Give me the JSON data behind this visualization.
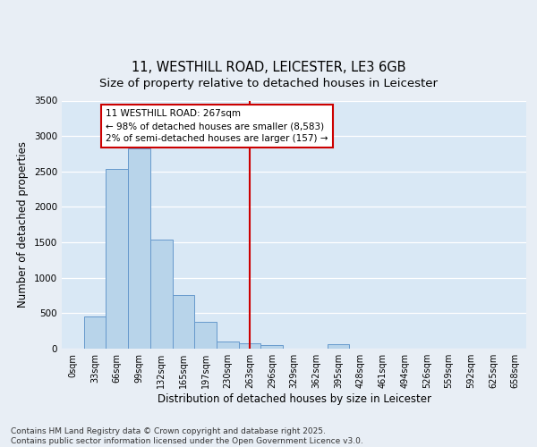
{
  "title_line1": "11, WESTHILL ROAD, LEICESTER, LE3 6GB",
  "title_line2": "Size of property relative to detached houses in Leicester",
  "xlabel": "Distribution of detached houses by size in Leicester",
  "ylabel": "Number of detached properties",
  "categories": [
    "0sqm",
    "33sqm",
    "66sqm",
    "99sqm",
    "132sqm",
    "165sqm",
    "197sqm",
    "230sqm",
    "263sqm",
    "296sqm",
    "329sqm",
    "362sqm",
    "395sqm",
    "428sqm",
    "461sqm",
    "494sqm",
    "526sqm",
    "559sqm",
    "592sqm",
    "625sqm",
    "658sqm"
  ],
  "values": [
    0,
    450,
    2530,
    2830,
    1540,
    760,
    380,
    100,
    70,
    50,
    0,
    0,
    60,
    0,
    0,
    0,
    0,
    0,
    0,
    0,
    0
  ],
  "bar_color": "#b8d4ea",
  "bar_edge_color": "#6699cc",
  "vline_x_index": 8,
  "vline_color": "#cc0000",
  "annotation_text": "11 WESTHILL ROAD: 267sqm\n← 98% of detached houses are smaller (8,583)\n2% of semi-detached houses are larger (157) →",
  "annotation_box_color": "#cc0000",
  "annotation_box_fill": "#ffffff",
  "ylim": [
    0,
    3500
  ],
  "yticks": [
    0,
    500,
    1000,
    1500,
    2000,
    2500,
    3000,
    3500
  ],
  "background_color": "#d9e8f5",
  "fig_background_color": "#e8eef5",
  "footer_text": "Contains HM Land Registry data © Crown copyright and database right 2025.\nContains public sector information licensed under the Open Government Licence v3.0.",
  "title_fontsize": 10.5,
  "subtitle_fontsize": 9.5,
  "axis_label_fontsize": 8.5,
  "tick_fontsize": 7,
  "annotation_fontsize": 7.5,
  "footer_fontsize": 6.5
}
